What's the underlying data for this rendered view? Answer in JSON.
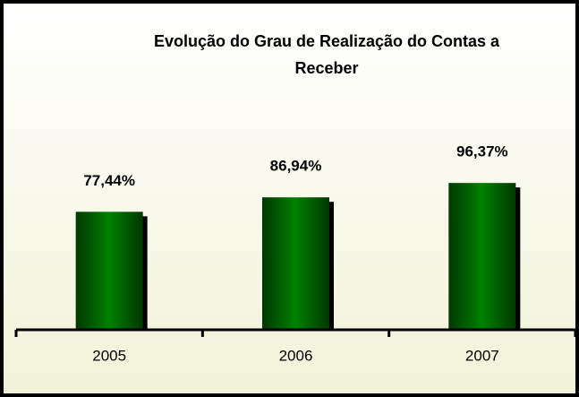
{
  "chart_data": {
    "type": "bar",
    "title": [
      "Evolução do Grau de Realização do Contas a",
      "Receber"
    ],
    "categories": [
      "2005",
      "2006",
      "2007"
    ],
    "values": [
      77.44,
      86.94,
      96.37
    ],
    "value_labels": [
      "77,44%",
      "86,94%",
      "96,37%"
    ],
    "color": "#008000",
    "ylim": [
      0,
      150
    ]
  }
}
